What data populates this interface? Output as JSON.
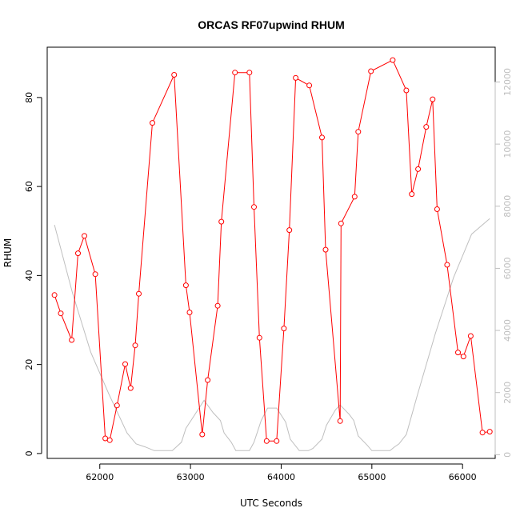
{
  "chart_data": {
    "type": "line",
    "title": "ORCAS RF07upwind RHUM",
    "xlabel": "UTC Seconds",
    "ylabel": "RHUM",
    "xlim": [
      61420,
      66360
    ],
    "ylim": [
      -1.1,
      91.3
    ],
    "y2lim": [
      -120,
      13120
    ],
    "grid": false,
    "x_ticks": [
      {
        "value": 62000,
        "label": "62000"
      },
      {
        "value": 63000,
        "label": "63000"
      },
      {
        "value": 64000,
        "label": "64000"
      },
      {
        "value": 65000,
        "label": "65000"
      },
      {
        "value": 66000,
        "label": "66000"
      }
    ],
    "y_ticks": [
      {
        "value": 0,
        "label": "0"
      },
      {
        "value": 20,
        "label": "20"
      },
      {
        "value": 40,
        "label": "40"
      },
      {
        "value": 60,
        "label": "60"
      },
      {
        "value": 80,
        "label": "80"
      }
    ],
    "y2_ticks": [
      {
        "value": 0,
        "label": "0"
      },
      {
        "value": 2000,
        "label": "2000"
      },
      {
        "value": 4000,
        "label": "4000"
      },
      {
        "value": 6000,
        "label": "6000"
      },
      {
        "value": 8000,
        "label": "8000"
      },
      {
        "value": 10000,
        "label": "10000"
      },
      {
        "value": 12000,
        "label": "12000"
      }
    ],
    "series": [
      {
        "axis": "left",
        "color": "#ff0000",
        "markers": true,
        "points": [
          [
            61500,
            35.6
          ],
          [
            61570,
            31.5
          ],
          [
            61690,
            25.5
          ],
          [
            61760,
            45.0
          ],
          [
            61830,
            48.9
          ],
          [
            61950,
            40.3
          ],
          [
            62060,
            3.4
          ],
          [
            62110,
            3.0
          ],
          [
            62190,
            10.8
          ],
          [
            62280,
            20.1
          ],
          [
            62340,
            14.7
          ],
          [
            62390,
            24.3
          ],
          [
            62430,
            35.9
          ],
          [
            62580,
            74.3
          ],
          [
            62820,
            85.1
          ],
          [
            62950,
            37.8
          ],
          [
            62990,
            31.7
          ],
          [
            63130,
            4.3
          ],
          [
            63190,
            16.5
          ],
          [
            63300,
            33.2
          ],
          [
            63340,
            52.1
          ],
          [
            63490,
            85.6
          ],
          [
            63650,
            85.6
          ],
          [
            63700,
            55.4
          ],
          [
            63760,
            26.0
          ],
          [
            63840,
            2.8
          ],
          [
            63950,
            2.8
          ],
          [
            64030,
            28.1
          ],
          [
            64090,
            50.2
          ],
          [
            64160,
            84.4
          ],
          [
            64310,
            82.7
          ],
          [
            64450,
            71.0
          ],
          [
            64490,
            45.8
          ],
          [
            64650,
            7.3
          ],
          [
            64660,
            51.7
          ],
          [
            64810,
            57.7
          ],
          [
            64850,
            72.3
          ],
          [
            64990,
            85.9
          ],
          [
            65230,
            88.4
          ],
          [
            65380,
            81.6
          ],
          [
            65440,
            58.3
          ],
          [
            65510,
            63.9
          ],
          [
            65600,
            73.4
          ],
          [
            65670,
            79.6
          ],
          [
            65720,
            54.9
          ],
          [
            65830,
            42.4
          ],
          [
            65950,
            22.7
          ],
          [
            66010,
            21.8
          ],
          [
            66090,
            26.4
          ],
          [
            66220,
            4.7
          ],
          [
            66300,
            4.9
          ]
        ]
      },
      {
        "axis": "right",
        "color": "#bfbfbf",
        "markers": false,
        "points": [
          [
            61500,
            7400
          ],
          [
            61700,
            5200
          ],
          [
            61900,
            3300
          ],
          [
            62100,
            1950
          ],
          [
            62300,
            700
          ],
          [
            62400,
            350
          ],
          [
            62500,
            250
          ],
          [
            62600,
            130
          ],
          [
            62700,
            130
          ],
          [
            62800,
            130
          ],
          [
            62900,
            400
          ],
          [
            62950,
            850
          ],
          [
            63050,
            1300
          ],
          [
            63150,
            1750
          ],
          [
            63250,
            1350
          ],
          [
            63330,
            1100
          ],
          [
            63370,
            700
          ],
          [
            63450,
            400
          ],
          [
            63500,
            130
          ],
          [
            63600,
            130
          ],
          [
            63650,
            130
          ],
          [
            63700,
            400
          ],
          [
            63780,
            1100
          ],
          [
            63850,
            1500
          ],
          [
            63950,
            1500
          ],
          [
            64050,
            1050
          ],
          [
            64100,
            500
          ],
          [
            64200,
            130
          ],
          [
            64300,
            130
          ],
          [
            64350,
            200
          ],
          [
            64450,
            500
          ],
          [
            64500,
            950
          ],
          [
            64600,
            1450
          ],
          [
            64650,
            1600
          ],
          [
            64750,
            1300
          ],
          [
            64800,
            1100
          ],
          [
            64850,
            600
          ],
          [
            64950,
            300
          ],
          [
            65000,
            130
          ],
          [
            65100,
            130
          ],
          [
            65200,
            130
          ],
          [
            65250,
            250
          ],
          [
            65300,
            350
          ],
          [
            65380,
            650
          ],
          [
            65500,
            1900
          ],
          [
            65700,
            3900
          ],
          [
            65900,
            5700
          ],
          [
            66100,
            7100
          ],
          [
            66300,
            7600
          ]
        ]
      }
    ]
  }
}
